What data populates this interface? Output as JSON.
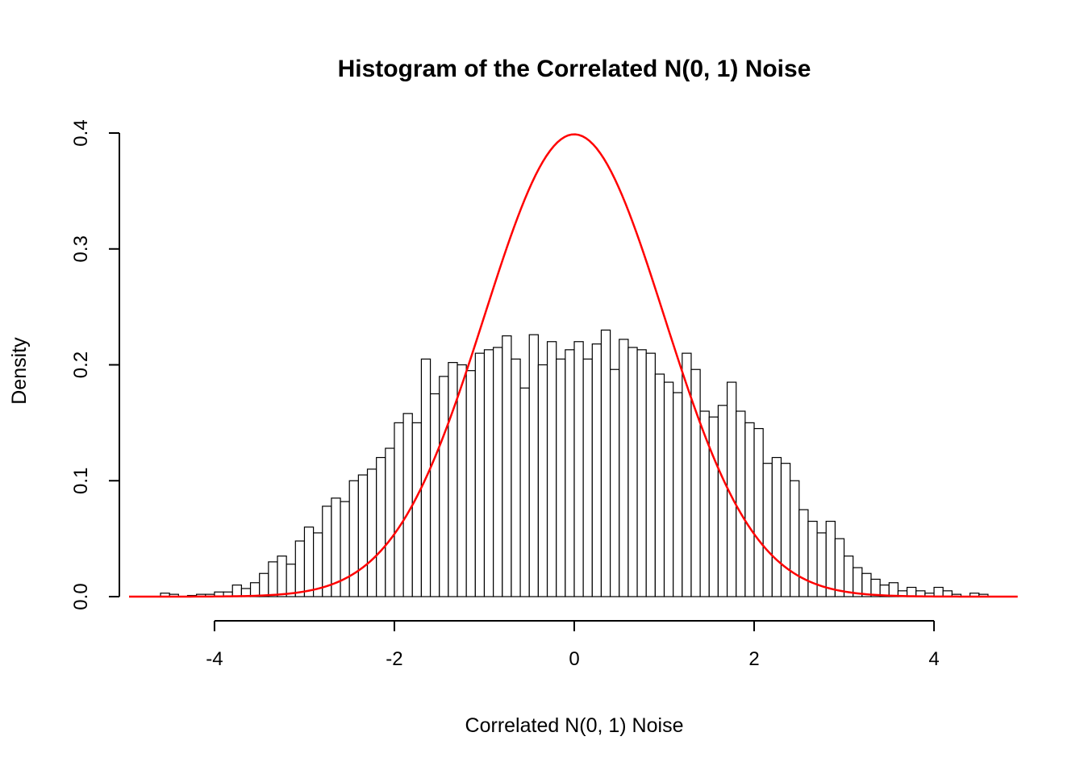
{
  "title": "Histogram of the Correlated N(0, 1) Noise",
  "xlabel": "Correlated N(0, 1) Noise",
  "ylabel": "Density",
  "colors": {
    "curve": "#FF0000",
    "bar_fill": "#FFFFFF",
    "bar_stroke": "#000000",
    "axis": "#000000",
    "background": "#FFFFFF"
  },
  "axes": {
    "x_tick_values": [
      -4,
      -2,
      0,
      2,
      4
    ],
    "x_tick_labels": [
      "-4",
      "-2",
      "0",
      "2",
      "4"
    ],
    "y_tick_values": [
      0.0,
      0.1,
      0.2,
      0.3,
      0.4
    ],
    "y_tick_labels": [
      "0.0",
      "0.1",
      "0.2",
      "0.3",
      "0.4"
    ],
    "xlim": [
      -4.95,
      4.95
    ],
    "ylim": [
      0,
      0.4
    ],
    "grid": false,
    "y_tick_label_rotation": 90
  },
  "chart_data": {
    "type": "bar",
    "subtype": "histogram-with-density-overlay",
    "title": "Histogram of the Correlated N(0, 1) Noise",
    "xlabel": "Correlated N(0, 1) Noise",
    "ylabel": "Density",
    "xlim": [
      -4.95,
      4.95
    ],
    "ylim": [
      0,
      0.4
    ],
    "bin_start": -4.7,
    "bin_width": 0.1,
    "densities": [
      0.0,
      0.003,
      0.002,
      0.0,
      0.001,
      0.002,
      0.002,
      0.004,
      0.004,
      0.01,
      0.007,
      0.012,
      0.02,
      0.03,
      0.035,
      0.028,
      0.048,
      0.06,
      0.055,
      0.078,
      0.085,
      0.082,
      0.1,
      0.105,
      0.11,
      0.12,
      0.128,
      0.15,
      0.158,
      0.15,
      0.205,
      0.175,
      0.19,
      0.202,
      0.2,
      0.195,
      0.21,
      0.213,
      0.215,
      0.225,
      0.205,
      0.18,
      0.226,
      0.2,
      0.22,
      0.205,
      0.213,
      0.22,
      0.205,
      0.218,
      0.23,
      0.196,
      0.222,
      0.215,
      0.213,
      0.21,
      0.192,
      0.185,
      0.176,
      0.21,
      0.196,
      0.16,
      0.155,
      0.165,
      0.185,
      0.16,
      0.15,
      0.145,
      0.115,
      0.12,
      0.115,
      0.1,
      0.075,
      0.065,
      0.055,
      0.065,
      0.05,
      0.035,
      0.025,
      0.02,
      0.015,
      0.01,
      0.012,
      0.005,
      0.008,
      0.005,
      0.003,
      0.008,
      0.005,
      0.002,
      0.0,
      0.003,
      0.002
    ],
    "overlay_curve": {
      "name": "standard-normal-density",
      "description": "dnorm(x, mean = 0, sd = 1)",
      "mean": 0,
      "sd": 1,
      "peak": 0.3989,
      "color": "#FF0000",
      "x_range": [
        -4.95,
        4.95
      ]
    },
    "legend": null
  }
}
